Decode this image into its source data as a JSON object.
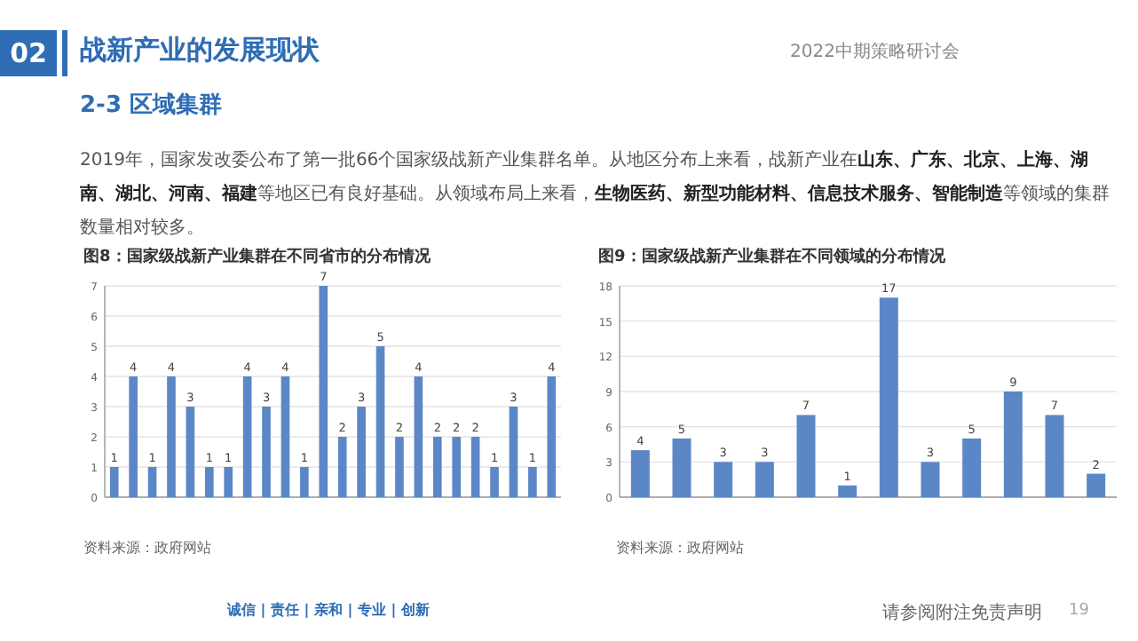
{
  "chart_data": [
    {
      "type": "bar",
      "title": "图8：国家级战新产业集群在不同省市的分布情况",
      "categories": [
        null,
        null,
        null,
        null,
        null,
        null,
        null,
        null,
        null,
        null,
        null,
        null,
        null,
        null,
        null,
        null,
        null,
        null,
        null,
        null,
        null,
        null,
        null,
        null
      ],
      "values": [
        1,
        4,
        1,
        4,
        3,
        1,
        1,
        4,
        3,
        4,
        1,
        7,
        2,
        3,
        5,
        2,
        4,
        2,
        2,
        2,
        1,
        3,
        1,
        4
      ],
      "color": "#5b87c7",
      "ylim": [
        0,
        7
      ],
      "yticks": [
        0,
        1,
        2,
        3,
        4,
        5,
        6,
        7
      ],
      "grid": "y",
      "data_labels": true,
      "annotations": [
        "02",
        "战新产业的发展现状",
        "2022中期策略研讨会",
        "2-3 区域集群",
        "2019年，国家发改委公布了第一批66个国家级战新产业集群名单。从地区分布上来看，战新产业在**山东、广东、北京、上海、湖南、湖北、河南、福建**等地区已有良好基础。从领域布局上来看，**生物医药、新型功能材料、信息技术服务、智能制造**等领域的集群数量相对较多。",
        "资料来源：政府网站",
        "诚信 | 责任 | 亲和 | 专业 | 创新",
        "请参阅附注免责声明",
        "19"
      ]
    },
    {
      "type": "bar",
      "title": "图9：国家级战新产业集群在不同领域的分布情况",
      "categories": [
        null,
        null,
        null,
        null,
        null,
        null,
        null,
        null,
        null,
        null,
        null,
        null
      ],
      "values": [
        4,
        5,
        3,
        3,
        7,
        1,
        17,
        3,
        5,
        9,
        7,
        2
      ],
      "color": "#5b87c7",
      "ylim": [
        0,
        18
      ],
      "yticks": [
        0,
        3,
        6,
        9,
        12,
        15,
        18
      ],
      "grid": "y",
      "data_labels": true,
      "annotations": [
        "资料来源：政府网站"
      ]
    }
  ]
}
